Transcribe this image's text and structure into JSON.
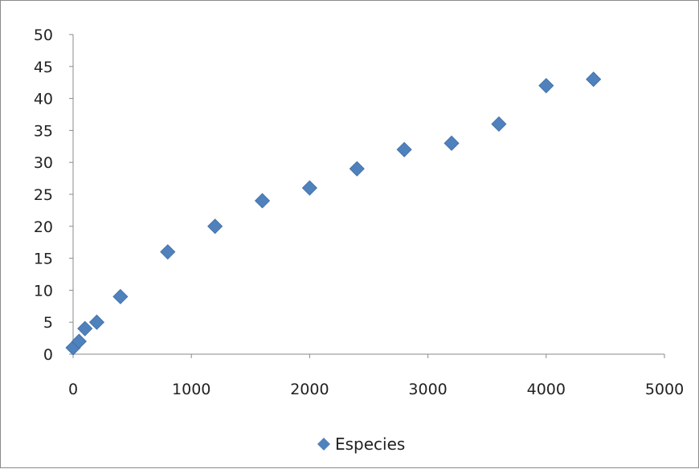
{
  "chart_data": {
    "type": "scatter",
    "title": "",
    "xlabel": "",
    "ylabel": "",
    "xlim": [
      0,
      5000
    ],
    "ylim": [
      0,
      50
    ],
    "x_ticks": [
      0,
      1000,
      2000,
      3000,
      4000,
      5000
    ],
    "y_ticks": [
      0,
      5,
      10,
      15,
      20,
      25,
      30,
      35,
      40,
      45,
      50
    ],
    "grid": false,
    "legend": "bottom-center",
    "marker": "diamond",
    "series": [
      {
        "name": "Especies",
        "color": "#4f81bd",
        "points": [
          {
            "x": 0,
            "y": 1
          },
          {
            "x": 50,
            "y": 2
          },
          {
            "x": 100,
            "y": 4
          },
          {
            "x": 200,
            "y": 5
          },
          {
            "x": 400,
            "y": 9
          },
          {
            "x": 800,
            "y": 16
          },
          {
            "x": 1200,
            "y": 20
          },
          {
            "x": 1600,
            "y": 24
          },
          {
            "x": 2000,
            "y": 26
          },
          {
            "x": 2400,
            "y": 29
          },
          {
            "x": 2800,
            "y": 32
          },
          {
            "x": 3200,
            "y": 33
          },
          {
            "x": 3600,
            "y": 36
          },
          {
            "x": 4000,
            "y": 42
          },
          {
            "x": 4400,
            "y": 43
          }
        ]
      }
    ]
  }
}
